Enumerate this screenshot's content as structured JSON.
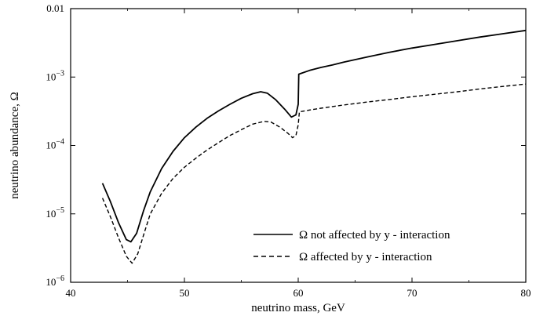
{
  "chart_data": {
    "type": "line",
    "title": "",
    "xlabel": "neutrino mass, GeV",
    "ylabel": "neutrino abundance, Ω",
    "xlim": [
      40,
      80
    ],
    "ylim": [
      1e-06,
      0.01
    ],
    "yscale": "log",
    "grid": false,
    "legend_position": "bottom-right",
    "x_ticks": [
      40,
      50,
      60,
      70,
      80
    ],
    "x_tick_labels": [
      "40",
      "50",
      "60",
      "70",
      "80"
    ],
    "y_ticks": [
      1e-06,
      1e-05,
      0.0001,
      0.001,
      0.01
    ],
    "y_tick_labels": [
      {
        "base": "10",
        "exp": "−6"
      },
      {
        "base": "10",
        "exp": "−5"
      },
      {
        "base": "10",
        "exp": "−4"
      },
      {
        "base": "10",
        "exp": "−3"
      },
      {
        "base": "0.01",
        "exp": ""
      }
    ],
    "series": [
      {
        "name": "Ω not affected by y - interaction",
        "style": "solid",
        "color": "#000000",
        "points": [
          [
            42.8,
            2.8e-05
          ],
          [
            43.5,
            1.5e-05
          ],
          [
            44.2,
            7.5e-06
          ],
          [
            44.9,
            4.2e-06
          ],
          [
            45.3,
            3.9e-06
          ],
          [
            45.8,
            5.2e-06
          ],
          [
            46.4,
            1.1e-05
          ],
          [
            47.0,
            2.1e-05
          ],
          [
            48.0,
            4.6e-05
          ],
          [
            49.0,
            8.2e-05
          ],
          [
            50.0,
            0.00013
          ],
          [
            51.0,
            0.000185
          ],
          [
            52.0,
            0.00025
          ],
          [
            53.0,
            0.00032
          ],
          [
            54.0,
            0.0004
          ],
          [
            55.0,
            0.00049
          ],
          [
            56.0,
            0.00057
          ],
          [
            56.7,
            0.00061
          ],
          [
            57.3,
            0.00058
          ],
          [
            58.0,
            0.00047
          ],
          [
            58.8,
            0.00034
          ],
          [
            59.4,
            0.00026
          ],
          [
            59.8,
            0.00028
          ],
          [
            60.0,
            0.0004
          ],
          [
            60.05,
            0.0011
          ],
          [
            61.0,
            0.00125
          ],
          [
            62.0,
            0.00138
          ],
          [
            63.0,
            0.0015
          ],
          [
            64.0,
            0.00165
          ],
          [
            66.0,
            0.00195
          ],
          [
            68.0,
            0.0023
          ],
          [
            70.0,
            0.00265
          ],
          [
            72.0,
            0.003
          ],
          [
            74.0,
            0.0034
          ],
          [
            76.0,
            0.00385
          ],
          [
            78.0,
            0.0043
          ],
          [
            80.0,
            0.0048
          ]
        ]
      },
      {
        "name": "Ω affected by y - interaction",
        "style": "dashed",
        "color": "#000000",
        "points": [
          [
            42.8,
            1.7e-05
          ],
          [
            43.5,
            9e-06
          ],
          [
            44.2,
            4.5e-06
          ],
          [
            44.9,
            2.4e-06
          ],
          [
            45.4,
            1.9e-06
          ],
          [
            45.9,
            2.6e-06
          ],
          [
            46.5,
            5.5e-06
          ],
          [
            47.0,
            1e-05
          ],
          [
            48.0,
            2e-05
          ],
          [
            49.0,
            3.3e-05
          ],
          [
            50.0,
            4.8e-05
          ],
          [
            51.0,
            6.5e-05
          ],
          [
            52.0,
            8.6e-05
          ],
          [
            53.0,
            0.00011
          ],
          [
            54.0,
            0.00014
          ],
          [
            55.0,
            0.00017
          ],
          [
            56.0,
            0.000205
          ],
          [
            57.0,
            0.000225
          ],
          [
            57.6,
            0.00022
          ],
          [
            58.4,
            0.000185
          ],
          [
            59.1,
            0.00015
          ],
          [
            59.5,
            0.00013
          ],
          [
            59.8,
            0.00014
          ],
          [
            60.0,
            0.0002
          ],
          [
            60.1,
            0.00031
          ],
          [
            61.0,
            0.00033
          ],
          [
            62.0,
            0.00035
          ],
          [
            64.0,
            0.00039
          ],
          [
            66.0,
            0.00043
          ],
          [
            68.0,
            0.00047
          ],
          [
            70.0,
            0.000515
          ],
          [
            72.0,
            0.00056
          ],
          [
            74.0,
            0.00061
          ],
          [
            76.0,
            0.00067
          ],
          [
            78.0,
            0.00073
          ],
          [
            80.0,
            0.00079
          ]
        ]
      }
    ]
  }
}
